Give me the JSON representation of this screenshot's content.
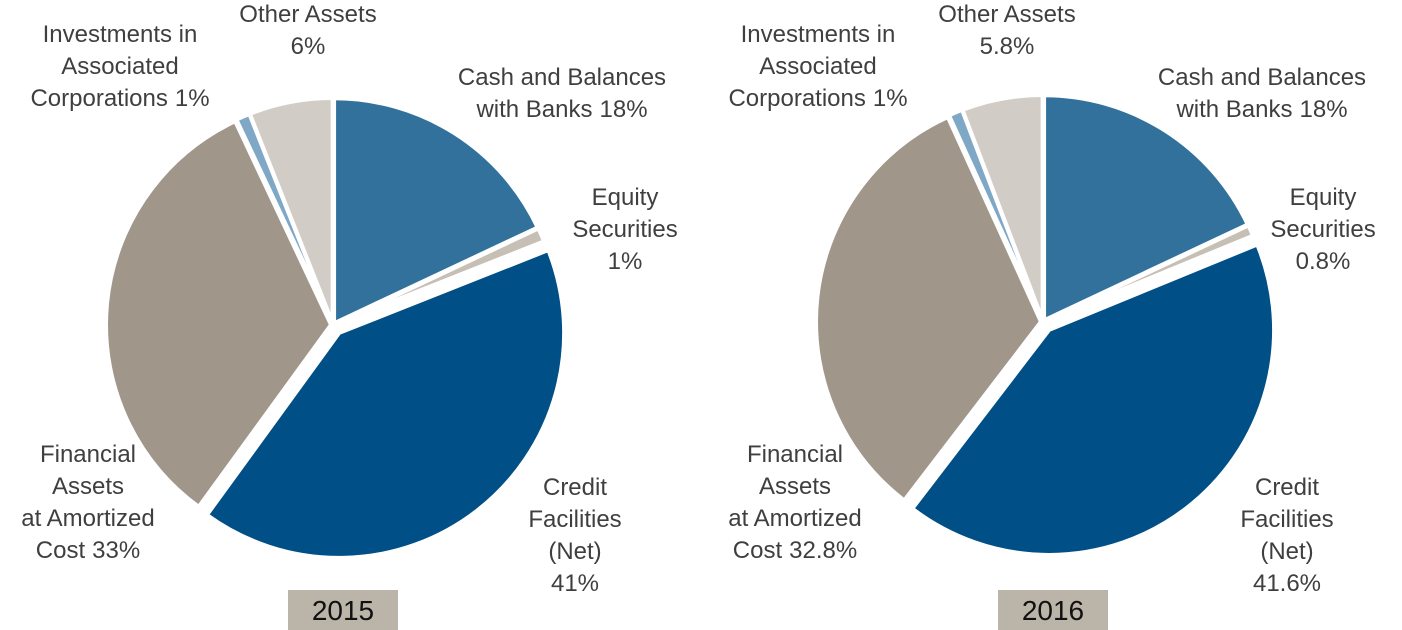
{
  "chart_data": [
    {
      "type": "pie",
      "title": "2015",
      "categories": [
        "Cash and Balances with Banks",
        "Equity Securities",
        "Credit Facilities (Net)",
        "Financial Assets at Amortized Cost",
        "Investments in Associated Corporations",
        "Other Assets"
      ],
      "values": [
        18,
        1,
        41,
        33,
        1,
        6
      ],
      "value_labels": [
        "18%",
        "1%",
        "41%",
        "33%",
        "1%",
        "6%"
      ],
      "colors": [
        "#31719c",
        "#c5bfb6",
        "#004f86",
        "#a0968a",
        "#7fa7c6",
        "#d1ccc6"
      ]
    },
    {
      "type": "pie",
      "title": "2016",
      "categories": [
        "Cash and Balances with Banks",
        "Equity Securities",
        "Credit Facilities (Net)",
        "Financial Assets at Amortized Cost",
        "Investments in Associated Corporations",
        "Other Assets"
      ],
      "values": [
        18,
        0.8,
        41.6,
        32.8,
        1,
        5.8
      ],
      "value_labels": [
        "18%",
        "0.8%",
        "41.6%",
        "32.8%",
        "1%",
        "5.8%"
      ],
      "colors": [
        "#31719c",
        "#c5bfb6",
        "#004f86",
        "#a0968a",
        "#7fa7c6",
        "#d1ccc6"
      ]
    }
  ]
}
